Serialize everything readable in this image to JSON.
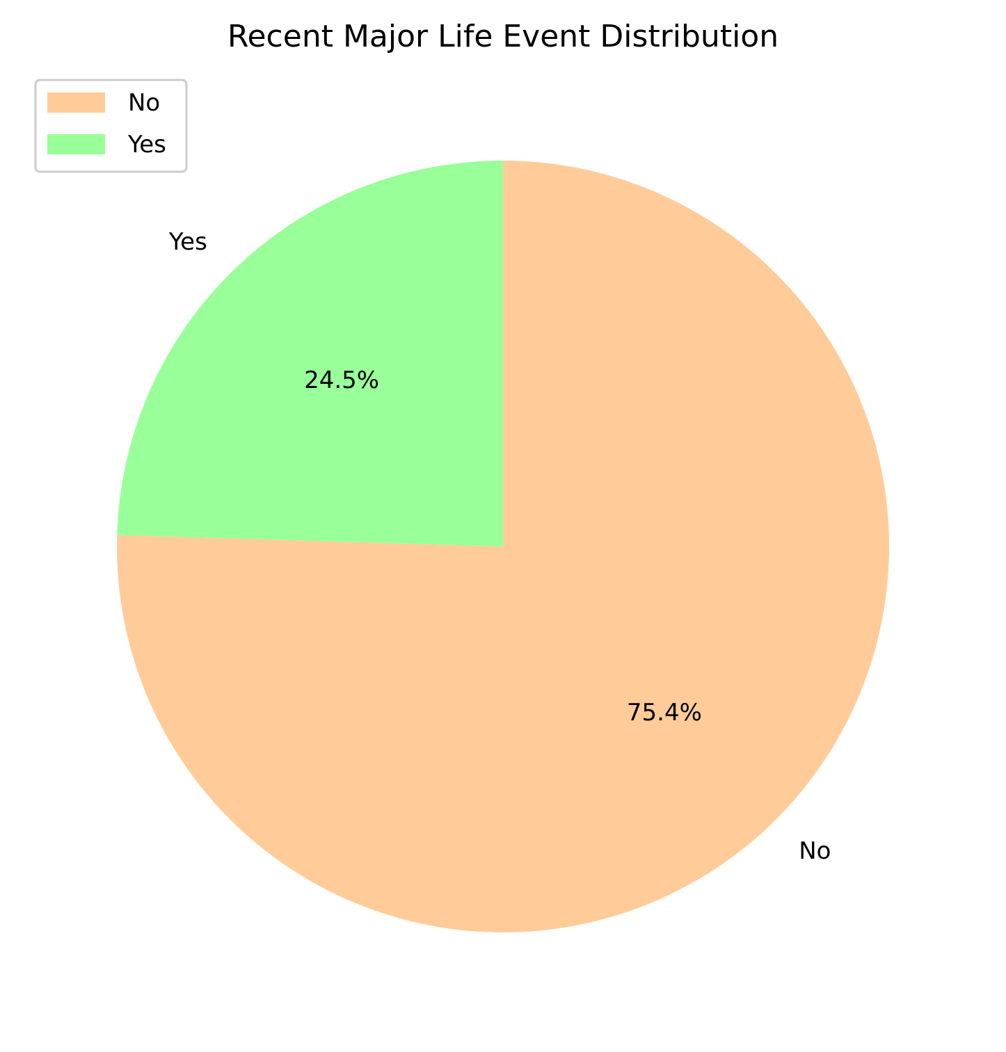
{
  "chart_data": {
    "type": "pie",
    "title": "Recent Major Life Event Distribution",
    "start_angle_deg": 90,
    "direction": "clockwise",
    "slices": [
      {
        "label": "No",
        "value": 75.4,
        "pct_label": "75.4%",
        "color": "#ffcc99"
      },
      {
        "label": "Yes",
        "value": 24.5,
        "pct_label": "24.5%",
        "color": "#99ff99"
      }
    ],
    "legend": {
      "position": "top-left",
      "entries": [
        "No",
        "Yes"
      ]
    }
  }
}
